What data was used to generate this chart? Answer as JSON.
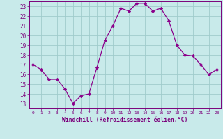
{
  "x": [
    0,
    1,
    2,
    3,
    4,
    5,
    6,
    7,
    8,
    9,
    10,
    11,
    12,
    13,
    14,
    15,
    16,
    17,
    18,
    19,
    20,
    21,
    22,
    23
  ],
  "y": [
    17,
    16.5,
    15.5,
    15.5,
    14.5,
    13,
    13.8,
    14,
    16.7,
    19.5,
    21,
    22.8,
    22.5,
    23.3,
    23.3,
    22.5,
    22.8,
    21.5,
    19,
    18,
    17.9,
    17,
    16,
    16.5
  ],
  "line_color": "#8B008B",
  "marker_color": "#8B008B",
  "bg_color": "#c8eaea",
  "grid_color": "#a0cccc",
  "xlabel": "Windchill (Refroidissement éolien,°C)",
  "xlim": [
    -0.5,
    23.5
  ],
  "ylim": [
    12.5,
    23.5
  ],
  "xticks": [
    0,
    1,
    2,
    3,
    4,
    5,
    6,
    7,
    8,
    9,
    10,
    11,
    12,
    13,
    14,
    15,
    16,
    17,
    18,
    19,
    20,
    21,
    22,
    23
  ],
  "yticks": [
    13,
    14,
    15,
    16,
    17,
    18,
    19,
    20,
    21,
    22,
    23
  ],
  "tick_color": "#7B007B",
  "axis_label_color": "#7B007B"
}
